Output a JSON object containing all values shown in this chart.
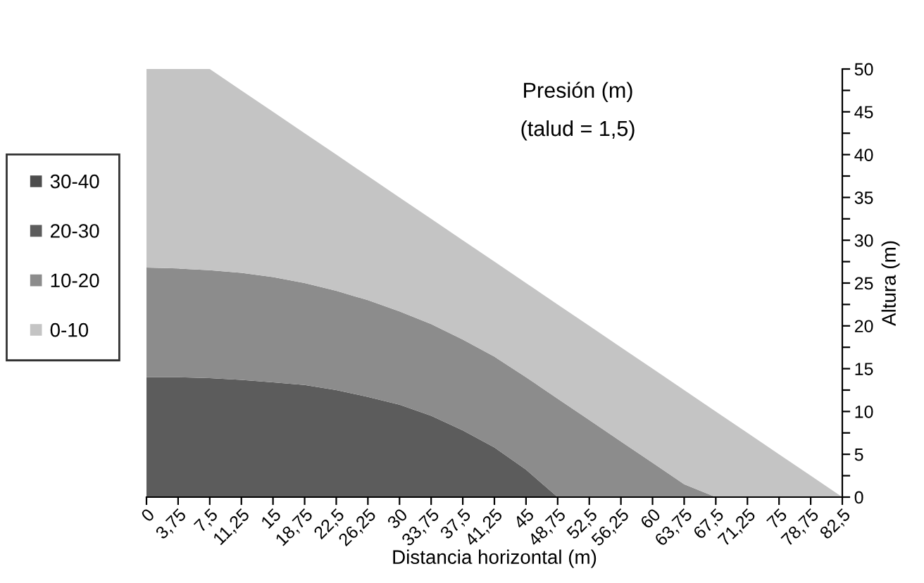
{
  "chart_data": {
    "type": "area",
    "stacked": true,
    "title": "Presión (m)",
    "subtitle": "(talud = 1,5)",
    "xlabel": "Distancia horizontal (m)",
    "ylabel": "Altura (m)",
    "categories": [
      "0",
      "3,75",
      "7,5",
      "11,25",
      "15",
      "18,75",
      "22,5",
      "26,25",
      "30",
      "33,75",
      "37,5",
      "41,25",
      "45",
      "48,75",
      "52,5",
      "56,25",
      "60",
      "63,75",
      "67,5",
      "71,25",
      "75",
      "78,75",
      "82,5"
    ],
    "series": [
      {
        "name": "30-40",
        "color": "#4d4d4d",
        "values": [
          null,
          null,
          null,
          null,
          null,
          null,
          null,
          null,
          null,
          null,
          null,
          null,
          null,
          null,
          null,
          null,
          null,
          null,
          null,
          null,
          null,
          null,
          null
        ]
      },
      {
        "name": "20-30",
        "color": "#5c5c5c",
        "values": [
          14,
          14,
          13.9,
          13.7,
          13.4,
          13.1,
          12.5,
          11.7,
          10.8,
          9.5,
          7.8,
          5.8,
          3.2,
          0,
          0,
          0,
          0,
          0,
          0,
          0,
          0,
          0,
          0
        ]
      },
      {
        "name": "10-20",
        "color": "#8c8c8c",
        "values": [
          12.8,
          12.7,
          12.6,
          12.5,
          12.3,
          11.9,
          11.6,
          11.3,
          10.9,
          10.7,
          10.6,
          10.6,
          10.8,
          11.5,
          9,
          6.5,
          4,
          1.5,
          0,
          0,
          0,
          0,
          0
        ]
      },
      {
        "name": "0-10",
        "color": "#c4c4c4",
        "values": [
          23.2,
          23.3,
          23.5,
          21.3,
          19.3,
          17.5,
          15.9,
          14.5,
          13.3,
          12.3,
          11.6,
          11.1,
          11,
          11,
          11,
          11,
          11,
          11,
          10,
          7.5,
          5,
          2.5,
          0
        ]
      }
    ],
    "ylim": [
      0,
      50
    ],
    "yticks": [
      0,
      {
        "value": 2.5,
        "label": null
      },
      5,
      {
        "value": 7.5,
        "label": null
      },
      10,
      {
        "value": 12.5,
        "label": null
      },
      15,
      {
        "value": 17.5,
        "label": null
      },
      20,
      {
        "value": 22.5,
        "label": null
      },
      25,
      {
        "value": 27.5,
        "label": null
      },
      30,
      {
        "value": 32.5,
        "label": null
      },
      35,
      {
        "value": 37.5,
        "label": null
      },
      40,
      {
        "value": 42.5,
        "label": null
      },
      45,
      {
        "value": 47.5,
        "label": null
      },
      50
    ],
    "legend": "left",
    "grid": false
  }
}
